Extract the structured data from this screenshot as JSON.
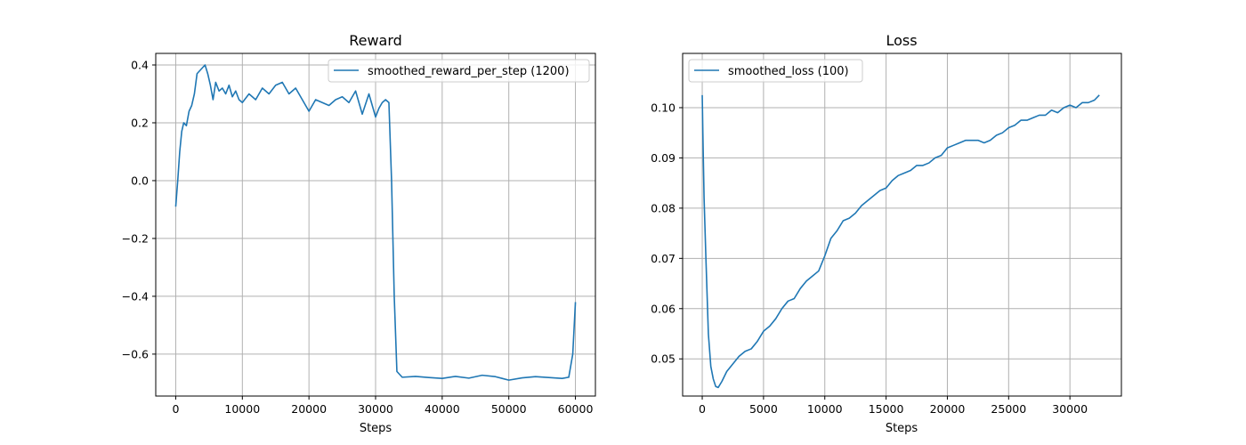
{
  "chart_data": [
    {
      "type": "line",
      "title": "Reward",
      "xlabel": "Steps",
      "ylabel": "",
      "xlim": [
        -3000,
        63000
      ],
      "ylim": [
        -0.745,
        0.44
      ],
      "xticks": [
        0,
        10000,
        20000,
        30000,
        40000,
        50000,
        60000
      ],
      "yticks": [
        -0.6,
        -0.4,
        -0.2,
        0.0,
        0.2,
        0.4
      ],
      "ytick_labels": [
        "−0.6",
        "−0.4",
        "−0.2",
        "0.0",
        "0.2",
        "0.4"
      ],
      "grid": true,
      "legend_position": "upper right",
      "color": "#1f77b4",
      "series": [
        {
          "name": "smoothed_reward_per_step (1200)",
          "x": [
            0,
            300,
            600,
            900,
            1200,
            1600,
            2000,
            2400,
            2800,
            3200,
            3600,
            4000,
            4400,
            4800,
            5200,
            5600,
            6000,
            6500,
            7000,
            7500,
            8000,
            8500,
            9000,
            9500,
            10000,
            11000,
            12000,
            13000,
            14000,
            15000,
            16000,
            17000,
            18000,
            19000,
            20000,
            21000,
            22000,
            23000,
            24000,
            25000,
            26000,
            27000,
            28000,
            29000,
            30000,
            30500,
            31000,
            31500,
            32000,
            32400,
            32800,
            33200,
            34000,
            36000,
            38000,
            40000,
            42000,
            44000,
            46000,
            48000,
            49000,
            50000,
            52000,
            54000,
            56000,
            58000,
            59000,
            59600,
            60000
          ],
          "y": [
            -0.09,
            0.0,
            0.1,
            0.17,
            0.2,
            0.19,
            0.24,
            0.26,
            0.3,
            0.37,
            0.38,
            0.39,
            0.4,
            0.37,
            0.33,
            0.28,
            0.34,
            0.31,
            0.32,
            0.3,
            0.33,
            0.29,
            0.31,
            0.28,
            0.27,
            0.3,
            0.28,
            0.32,
            0.3,
            0.33,
            0.34,
            0.3,
            0.32,
            0.28,
            0.24,
            0.28,
            0.27,
            0.26,
            0.28,
            0.29,
            0.27,
            0.31,
            0.23,
            0.3,
            0.22,
            0.25,
            0.27,
            0.28,
            0.27,
            0.0,
            -0.4,
            -0.66,
            -0.68,
            -0.677,
            -0.681,
            -0.684,
            -0.677,
            -0.683,
            -0.673,
            -0.678,
            -0.684,
            -0.69,
            -0.682,
            -0.678,
            -0.681,
            -0.684,
            -0.68,
            -0.6,
            -0.42
          ]
        }
      ]
    },
    {
      "type": "line",
      "title": "Loss",
      "xlabel": "Steps",
      "ylabel": "",
      "xlim": [
        -1600,
        34200
      ],
      "ylim": [
        0.0426,
        0.1108
      ],
      "xticks": [
        0,
        5000,
        10000,
        15000,
        20000,
        25000,
        30000
      ],
      "yticks": [
        0.05,
        0.06,
        0.07,
        0.08,
        0.09,
        0.1
      ],
      "ytick_labels": [
        "0.05",
        "0.06",
        "0.07",
        "0.08",
        "0.09",
        "0.10"
      ],
      "grid": true,
      "legend_position": "upper left",
      "color": "#1f77b4",
      "series": [
        {
          "name": "smoothed_loss (100)",
          "x": [
            0,
            50,
            150,
            300,
            500,
            700,
            900,
            1100,
            1300,
            1600,
            2000,
            2500,
            3000,
            3500,
            4000,
            4500,
            5000,
            5500,
            6000,
            6500,
            7000,
            7500,
            8000,
            8500,
            9000,
            9500,
            10000,
            10500,
            11000,
            11500,
            12000,
            12500,
            13000,
            13500,
            14000,
            14500,
            15000,
            15500,
            16000,
            16500,
            17000,
            17500,
            18000,
            18500,
            19000,
            19500,
            20000,
            20500,
            21000,
            21500,
            22000,
            22500,
            23000,
            23500,
            24000,
            24500,
            25000,
            25500,
            26000,
            26500,
            27000,
            27500,
            28000,
            28500,
            29000,
            29500,
            30000,
            30500,
            31000,
            31500,
            32000,
            32400
          ],
          "y": [
            0.1025,
            0.095,
            0.082,
            0.07,
            0.055,
            0.0485,
            0.046,
            0.0445,
            0.0443,
            0.0455,
            0.0475,
            0.049,
            0.0505,
            0.0515,
            0.052,
            0.0535,
            0.0555,
            0.0565,
            0.058,
            0.06,
            0.0615,
            0.062,
            0.064,
            0.0655,
            0.0665,
            0.0675,
            0.0705,
            0.074,
            0.0755,
            0.0775,
            0.078,
            0.079,
            0.0805,
            0.0815,
            0.0825,
            0.0835,
            0.084,
            0.0855,
            0.0865,
            0.087,
            0.0875,
            0.0885,
            0.0885,
            0.089,
            0.09,
            0.0905,
            0.092,
            0.0925,
            0.093,
            0.0935,
            0.0935,
            0.0935,
            0.093,
            0.0935,
            0.0945,
            0.095,
            0.096,
            0.0965,
            0.0975,
            0.0975,
            0.098,
            0.0985,
            0.0985,
            0.0995,
            0.099,
            0.1,
            0.1005,
            0.1,
            0.101,
            0.101,
            0.1015,
            0.1025
          ]
        }
      ]
    }
  ]
}
